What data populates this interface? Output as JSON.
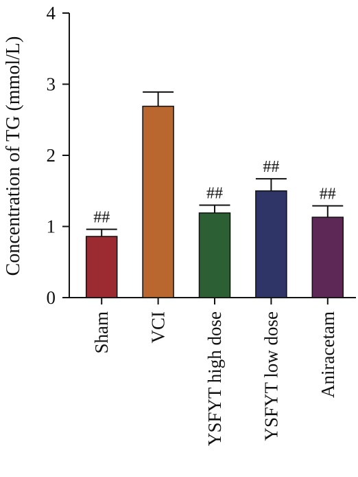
{
  "chart_data": {
    "type": "bar",
    "title": "",
    "xlabel": "",
    "ylabel": "Concentration of TG (mmol/L)",
    "ylim": [
      0,
      4
    ],
    "yticks": [
      "0",
      "1",
      "2",
      "3",
      "4"
    ],
    "categories": [
      "Sham",
      "VCI",
      "YSFYT high dose",
      "YSFYT low dose",
      "Aniracetam"
    ],
    "values": [
      0.86,
      2.69,
      1.19,
      1.5,
      1.13
    ],
    "errors": [
      0.1,
      0.2,
      0.11,
      0.17,
      0.16
    ],
    "annotations": [
      "##",
      "",
      "##",
      "##",
      "##"
    ],
    "colors": [
      "#9c2a31",
      "#b9662f",
      "#2c5f34",
      "#2f3566",
      "#5d2856"
    ],
    "grid": false,
    "legend": "none"
  }
}
